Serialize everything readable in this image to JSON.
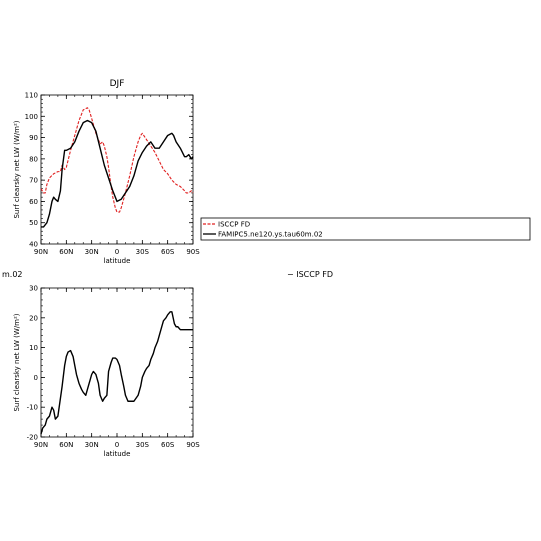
{
  "chart_data": [
    {
      "type": "line",
      "title": "DJF",
      "xlabel": "latitude",
      "ylabel": "Surf clearsky net LW (W/m²)",
      "xlim": [
        -90,
        90
      ],
      "ylim": [
        40,
        110
      ],
      "xticks": [
        -90,
        -60,
        -30,
        0,
        30,
        60,
        90
      ],
      "xtick_labels": [
        "90N",
        "60N",
        "30N",
        "0",
        "30S",
        "60S",
        "90S"
      ],
      "yticks": [
        40,
        50,
        60,
        70,
        80,
        90,
        100,
        110
      ],
      "ytick_labels": [
        "40",
        "50",
        "60",
        "70",
        "80",
        "90",
        "100",
        "110"
      ],
      "legend": {
        "placement": "right",
        "entries": [
          "ISCCP FD",
          "FAMIPC5.ne120.ys.tau60m.02"
        ]
      },
      "series": [
        {
          "name": "ISCCP FD",
          "color": "#e02020",
          "dash": true,
          "x": [
            -90,
            -87,
            -85,
            -83,
            -80,
            -75,
            -70,
            -67,
            -65,
            -62,
            -60,
            -55,
            -50,
            -45,
            -40,
            -35,
            -33,
            -30,
            -25,
            -20,
            -17,
            -15,
            -12,
            -10,
            -7,
            -5,
            -2,
            0,
            3,
            5,
            10,
            15,
            20,
            25,
            28,
            30,
            35,
            40,
            45,
            50,
            55,
            60,
            65,
            70,
            75,
            80,
            82,
            85,
            88,
            90
          ],
          "y": [
            66,
            64,
            64,
            68,
            71,
            73,
            74,
            74,
            77,
            75,
            76,
            84,
            91,
            98,
            103,
            104,
            103,
            99,
            92,
            87,
            88,
            86,
            81,
            76,
            67,
            62,
            57,
            55,
            55,
            57,
            64,
            72,
            81,
            88,
            91,
            92,
            89,
            86,
            83,
            79,
            75,
            73,
            70,
            68,
            67,
            65,
            64,
            64,
            65,
            64
          ]
        },
        {
          "name": "FAMIPC5.ne120.ys.tau60m.02",
          "color": "#000000",
          "dash": false,
          "x": [
            -90,
            -87,
            -85,
            -83,
            -80,
            -77,
            -75,
            -73,
            -70,
            -67,
            -65,
            -62,
            -60,
            -55,
            -50,
            -45,
            -40,
            -35,
            -30,
            -25,
            -20,
            -15,
            -10,
            -5,
            0,
            5,
            10,
            15,
            20,
            25,
            30,
            35,
            40,
            45,
            50,
            55,
            60,
            65,
            67,
            70,
            75,
            80,
            82,
            85,
            88,
            90
          ],
          "y": [
            48,
            48,
            49,
            50,
            54,
            60,
            62,
            61,
            60,
            65,
            75,
            84,
            84,
            85,
            88,
            93,
            97,
            98,
            97,
            93,
            85,
            77,
            71,
            65,
            60,
            61,
            64,
            67,
            72,
            79,
            83,
            86,
            88,
            85,
            85,
            88,
            91,
            92,
            91,
            88,
            85,
            81,
            81,
            82,
            80,
            81
          ]
        }
      ]
    },
    {
      "type": "line",
      "title": "",
      "xlabel": "latitude",
      "ylabel": "Surf clearsky net LW (W/m²)",
      "xlim": [
        -90,
        90
      ],
      "ylim": [
        -20,
        30
      ],
      "xticks": [
        -90,
        -60,
        -30,
        0,
        30,
        60,
        90
      ],
      "xtick_labels": [
        "90N",
        "60N",
        "30N",
        "0",
        "30S",
        "60S",
        "90S"
      ],
      "yticks": [
        -20,
        -10,
        0,
        10,
        20,
        30
      ],
      "ytick_labels": [
        "-20",
        "-10",
        "0",
        "10",
        "20",
        "30"
      ],
      "left_fragment": "m.02",
      "side_text": "− ISCCP FD",
      "series": [
        {
          "name": "",
          "color": "#000000",
          "dash": false,
          "x": [
            -90,
            -88,
            -85,
            -83,
            -80,
            -78,
            -77,
            -75,
            -73,
            -70,
            -68,
            -65,
            -62,
            -60,
            -58,
            -55,
            -52,
            -50,
            -48,
            -45,
            -42,
            -40,
            -37,
            -35,
            -32,
            -30,
            -28,
            -25,
            -22,
            -20,
            -17,
            -15,
            -12,
            -10,
            -7,
            -5,
            -2,
            0,
            3,
            5,
            8,
            10,
            13,
            15,
            20,
            25,
            28,
            30,
            33,
            35,
            38,
            40,
            43,
            45,
            48,
            50,
            53,
            55,
            58,
            60,
            63,
            65,
            68,
            70,
            72,
            75,
            78,
            80,
            83,
            85,
            88,
            90
          ],
          "y": [
            -19,
            -17,
            -16,
            -14,
            -13,
            -11,
            -10,
            -11,
            -14,
            -13,
            -9,
            -3,
            4,
            7,
            8.5,
            9,
            7,
            4,
            1,
            -2,
            -4,
            -5,
            -6,
            -4,
            -1,
            1,
            2,
            1,
            -2,
            -6,
            -8,
            -7,
            -6,
            2,
            5,
            6.5,
            6.5,
            6,
            4,
            1,
            -3,
            -6,
            -8,
            -8,
            -8,
            -6,
            -3,
            0,
            2,
            3,
            4,
            6,
            8,
            10,
            12,
            14,
            17,
            19,
            20,
            21,
            22,
            22,
            18,
            17,
            17,
            16,
            16,
            16,
            16,
            16,
            16,
            16
          ]
        }
      ]
    }
  ]
}
